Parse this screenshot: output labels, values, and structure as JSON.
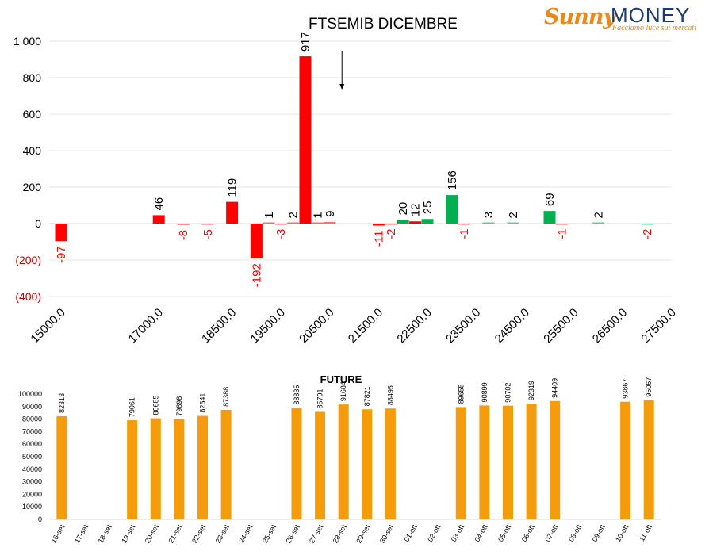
{
  "logo": {
    "word1": "Sunny",
    "word2": "MONEY",
    "tagline": "Facciamo luce sui mercati"
  },
  "colors": {
    "negative": "#ff0000",
    "positive": "#00b050",
    "future_bar": "#f59c0c",
    "negative_tick": "#c00000",
    "axis_text": "#000000"
  },
  "chart_data": [
    {
      "type": "bar",
      "title": "FTSEMIB DICEMBRE",
      "xlabel": "",
      "ylabel": "",
      "ylim": [
        -400,
        1000
      ],
      "grid": true,
      "y_ticks": [
        {
          "value": 1000,
          "label": "1 000"
        },
        {
          "value": 800,
          "label": "800"
        },
        {
          "value": 600,
          "label": "600"
        },
        {
          "value": 400,
          "label": "400"
        },
        {
          "value": 200,
          "label": "200"
        },
        {
          "value": 0,
          "label": "0"
        },
        {
          "value": -200,
          "label": "(200)"
        },
        {
          "value": -400,
          "label": "(400)"
        }
      ],
      "x_tick_labels": [
        "15000.0",
        "17000.0",
        "18500.0",
        "19500.0",
        "20500.0",
        "21500.0",
        "22500.0",
        "23500.0",
        "24500.0",
        "25500.0",
        "26500.0",
        "27500.0"
      ],
      "annotation": "arrow pointing down at 20750",
      "series": [
        {
          "values": [
            {
              "x": 15000,
              "value": -97,
              "label": "-97",
              "color": "negative"
            },
            {
              "x": 17000,
              "value": 46,
              "label": "46",
              "color": "negative"
            },
            {
              "x": 17500,
              "value": -8,
              "label": "-8",
              "color": "negative"
            },
            {
              "x": 18000,
              "value": -5,
              "label": "-5",
              "color": "negative"
            },
            {
              "x": 18500,
              "value": 119,
              "label": "119",
              "color": "negative"
            },
            {
              "x": 19000,
              "value": -192,
              "label": "-192",
              "color": "negative"
            },
            {
              "x": 19250,
              "value": 1,
              "label": "1",
              "color": "negative"
            },
            {
              "x": 19500,
              "value": -3,
              "label": "-3",
              "color": "negative"
            },
            {
              "x": 19750,
              "value": 2,
              "label": "2",
              "color": "negative"
            },
            {
              "x": 20000,
              "value": 917,
              "label": "917",
              "color": "negative"
            },
            {
              "x": 20250,
              "value": 1,
              "label": "1",
              "color": "negative"
            },
            {
              "x": 20500,
              "value": 9,
              "label": "9",
              "color": "negative"
            },
            {
              "x": 21500,
              "value": -11,
              "label": "-11",
              "color": "negative"
            },
            {
              "x": 21750,
              "value": -2,
              "label": "-2",
              "color": "negative"
            },
            {
              "x": 22000,
              "value": 20,
              "label": "20",
              "color": "positive"
            },
            {
              "x": 22250,
              "value": 12,
              "label": "12",
              "color": "negative"
            },
            {
              "x": 22500,
              "value": 25,
              "label": "25",
              "color": "positive"
            },
            {
              "x": 23000,
              "value": 156,
              "label": "156",
              "color": "positive"
            },
            {
              "x": 23250,
              "value": -1,
              "label": "-1",
              "color": "negative"
            },
            {
              "x": 23750,
              "value": 3,
              "label": "3",
              "color": "positive"
            },
            {
              "x": 24250,
              "value": 2,
              "label": "2",
              "color": "positive"
            },
            {
              "x": 25000,
              "value": 69,
              "label": "69",
              "color": "positive"
            },
            {
              "x": 25250,
              "value": -1,
              "label": "-1",
              "color": "negative"
            },
            {
              "x": 26000,
              "value": 2,
              "label": "2",
              "color": "positive"
            },
            {
              "x": 27000,
              "value": -2,
              "label": "-2",
              "color": "positive"
            }
          ]
        }
      ]
    },
    {
      "type": "bar",
      "title": "FUTURE",
      "xlabel": "",
      "ylabel": "",
      "ylim": [
        0,
        100000
      ],
      "grid": false,
      "y_ticks": [
        0,
        10000,
        20000,
        30000,
        40000,
        50000,
        60000,
        70000,
        80000,
        90000,
        100000
      ],
      "categories": [
        "16-set",
        "17-set",
        "18-set",
        "19-set",
        "20-set",
        "21-set",
        "22-set",
        "23-set",
        "24-set",
        "25-set",
        "26-set",
        "27-set",
        "28-set",
        "29-set",
        "30-set",
        "01-ott",
        "02-ott",
        "03-ott",
        "04-ott",
        "05-ott",
        "06-ott",
        "07-ott",
        "08-ott",
        "09-ott",
        "10-ott",
        "11-ott"
      ],
      "values": [
        82313,
        null,
        null,
        79061,
        80685,
        79898,
        82541,
        87388,
        null,
        null,
        88835,
        85791,
        91684,
        87821,
        88495,
        null,
        null,
        89655,
        90899,
        90702,
        92319,
        94409,
        null,
        null,
        93867,
        95067
      ]
    }
  ]
}
